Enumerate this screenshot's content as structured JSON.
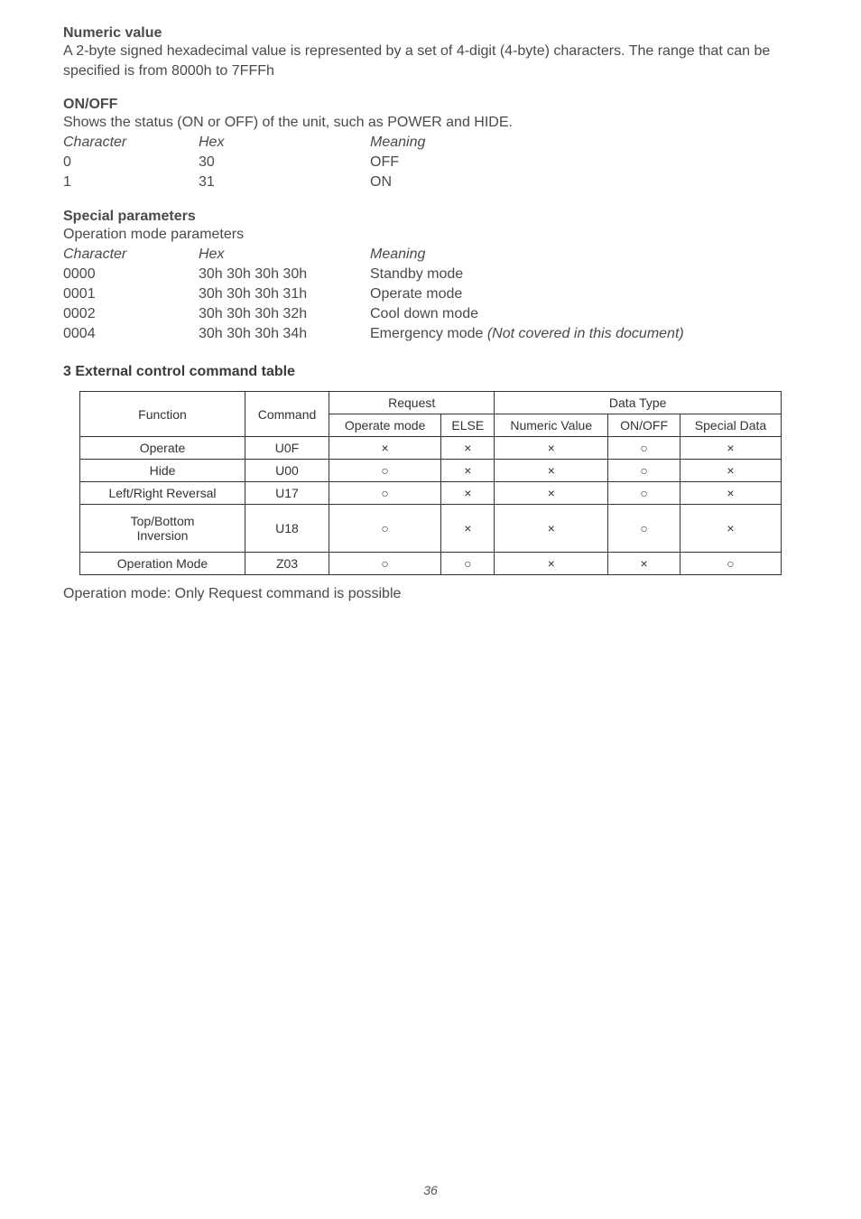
{
  "numeric": {
    "heading": "Numeric value",
    "body": "A 2-byte signed hexadecimal value is represented by a set of 4-digit (4-byte) characters. The range that can be specified is from 8000h to 7FFFh"
  },
  "onoff": {
    "heading": "ON/OFF",
    "intro": "Shows the status (ON or OFF) of the unit, such as POWER and HIDE.",
    "hdr": {
      "c": "Character",
      "h": "Hex",
      "m": "Meaning"
    },
    "rows": [
      {
        "c": "0",
        "h": "30",
        "m": "OFF"
      },
      {
        "c": "1",
        "h": "31",
        "m": "ON"
      }
    ]
  },
  "special": {
    "heading": "Special parameters",
    "sub": "Operation mode parameters",
    "hdr": {
      "c": "Character",
      "h": "Hex",
      "m": "Meaning"
    },
    "rows": [
      {
        "c": "0000",
        "h": "30h 30h 30h 30h",
        "m": "Standby mode",
        "note": ""
      },
      {
        "c": "0001",
        "h": "30h 30h 30h 31h",
        "m": "Operate mode",
        "note": ""
      },
      {
        "c": "0002",
        "h": "30h 30h 30h 32h",
        "m": "Cool down mode",
        "note": ""
      },
      {
        "c": "0004",
        "h": "30h 30h 30h 34h",
        "m": "Emergency mode  ",
        "note": "(Not covered in this document)"
      }
    ]
  },
  "tableSection": {
    "heading": "3 External control command table",
    "colgroups": {
      "function": "Function",
      "command": "Command",
      "request": "Request",
      "datatype": "Data Type",
      "operate": "Operate mode",
      "else": "ELSE",
      "numeric": "Numeric Value",
      "onoff": "ON/OFF",
      "special": "Special Data"
    },
    "marks": {
      "x": "×",
      "o": "○"
    },
    "rows": [
      {
        "fn": "Operate",
        "cmd": "U0F",
        "op": "x",
        "else": "x",
        "num": "x",
        "onoff": "o",
        "sp": "x",
        "tall": false
      },
      {
        "fn": "Hide",
        "cmd": "U00",
        "op": "o",
        "else": "x",
        "num": "x",
        "onoff": "o",
        "sp": "x",
        "tall": false
      },
      {
        "fn": "Left/Right Reversal",
        "cmd": "U17",
        "op": "o",
        "else": "x",
        "num": "x",
        "onoff": "o",
        "sp": "x",
        "tall": false
      },
      {
        "fn": "Top/Bottom Inversion",
        "cmd": "U18",
        "op": "o",
        "else": "x",
        "num": "x",
        "onoff": "o",
        "sp": "x",
        "tall": true
      },
      {
        "fn": "Operation Mode",
        "cmd": "Z03",
        "op": "o",
        "else": "o",
        "num": "x",
        "onoff": "x",
        "sp": "o",
        "tall": false
      }
    ],
    "footer": "Operation mode: Only Request command is possible"
  },
  "pageNumber": "36"
}
